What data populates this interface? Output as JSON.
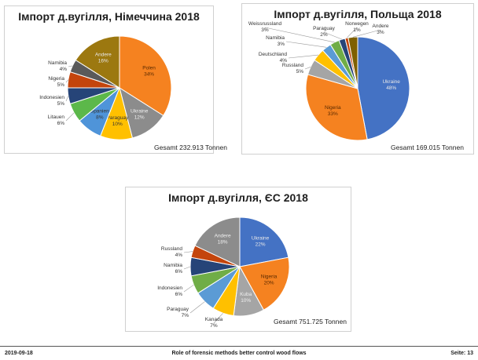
{
  "chart_data": [
    {
      "type": "pie",
      "title": "Імпорт д.вугілля, Німеччина 2018",
      "total": "Gesamt 232.913 Tonnen",
      "slices": [
        {
          "label": "Polen",
          "value": 34,
          "pct": "34%",
          "color": "#f58220"
        },
        {
          "label": "Ukraine",
          "value": 12,
          "pct": "12%",
          "color": "#8c8c8c"
        },
        {
          "label": "Paraguay",
          "value": 10,
          "pct": "10%",
          "color": "#ffc000"
        },
        {
          "label": "Spanien",
          "value": 8,
          "pct": "8%",
          "color": "#4f94d9"
        },
        {
          "label": "Litauen",
          "value": 6,
          "pct": "6%",
          "color": "#5cb84a"
        },
        {
          "label": "Indonesien",
          "value": 5,
          "pct": "5%",
          "color": "#264478"
        },
        {
          "label": "Nigeria",
          "value": 5,
          "pct": "5%",
          "color": "#c4450c"
        },
        {
          "label": "Namibia",
          "value": 4,
          "pct": "4%",
          "color": "#5a5a5a"
        },
        {
          "label": "Andere",
          "value": 16,
          "pct": "16%",
          "color": "#9c7810"
        }
      ]
    },
    {
      "type": "pie",
      "title": "Імпорт д.вугілля, Польща 2018",
      "total": "Gesamt 169.015 Tonnen",
      "slices": [
        {
          "label": "Ukraine",
          "value": 48,
          "pct": "48%",
          "color": "#4472c4"
        },
        {
          "label": "Nigeria",
          "value": 33,
          "pct": "33%",
          "color": "#f58220"
        },
        {
          "label": "Russland",
          "value": 5,
          "pct": "5%",
          "color": "#a5a5a5"
        },
        {
          "label": "Deutschland",
          "value": 4,
          "pct": "4%",
          "color": "#ffc000"
        },
        {
          "label": "Namibia",
          "value": 3,
          "pct": "3%",
          "color": "#5b9bd5"
        },
        {
          "label": "Weissrussland",
          "value": 3,
          "pct": "3%",
          "color": "#70ad47"
        },
        {
          "label": "Paraguay",
          "value": 2,
          "pct": "2%",
          "color": "#264478"
        },
        {
          "label": "Norwegen",
          "value": 1,
          "pct": "1%",
          "color": "#c4450c"
        },
        {
          "label": "Andere",
          "value": 3,
          "pct": "3%",
          "color": "#7f6000"
        }
      ]
    },
    {
      "type": "pie",
      "title": "Імпорт д.вугілля, ЄС 2018",
      "total": "Gesamt 751.725 Tonnen",
      "slices": [
        {
          "label": "Ukraine",
          "value": 22,
          "pct": "22%",
          "color": "#4472c4"
        },
        {
          "label": "Nigeria",
          "value": 20,
          "pct": "20%",
          "color": "#f58220"
        },
        {
          "label": "Kuba",
          "value": 10,
          "pct": "10%",
          "color": "#a5a5a5"
        },
        {
          "label": "Kanada",
          "value": 7,
          "pct": "7%",
          "color": "#ffc000"
        },
        {
          "label": "Paraguay",
          "value": 7,
          "pct": "7%",
          "color": "#5b9bd5"
        },
        {
          "label": "Indonesien",
          "value": 6,
          "pct": "6%",
          "color": "#70ad47"
        },
        {
          "label": "Namibia",
          "value": 6,
          "pct": "6%",
          "color": "#264478"
        },
        {
          "label": "Russland",
          "value": 4,
          "pct": "4%",
          "color": "#c4450c"
        },
        {
          "label": "Andere",
          "value": 18,
          "pct": "18%",
          "color": "#8c8c8c"
        }
      ]
    }
  ],
  "footer": {
    "date": "2019-09-18",
    "center": "Role of forensic methods better control wood flows",
    "page": "Seite: 13"
  }
}
